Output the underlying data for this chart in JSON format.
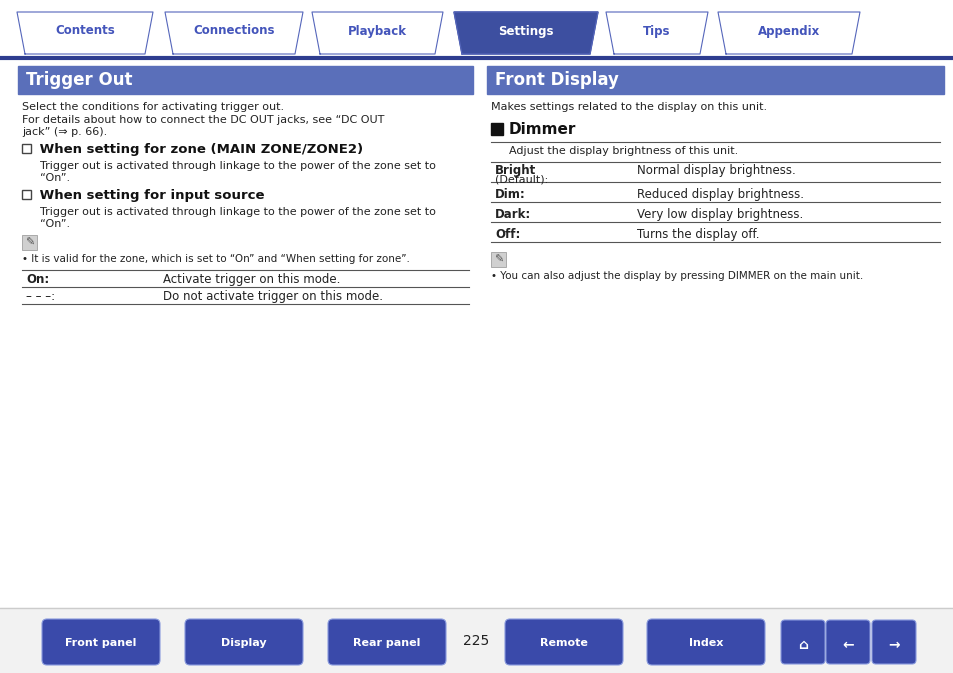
{
  "bg_color": "#ffffff",
  "header_tabs": [
    "Contents",
    "Connections",
    "Playback",
    "Settings",
    "Tips",
    "Appendix"
  ],
  "active_tab": "Settings",
  "tab_color_active": "#3d4fa0",
  "tab_color_inactive": "#ffffff",
  "tab_border_color": "#5566bb",
  "header_line_color": "#2e3d8f",
  "section_bar_color": "#5a6fba",
  "section_bar_text_color": "#ffffff",
  "left_title": "Trigger Out",
  "right_title": "Front Display",
  "left_intro1": "Select the conditions for activating trigger out.",
  "left_intro2_1": "For details about how to connect the DC OUT jacks, see “DC OUT",
  "left_intro2_2": "jack” (⇒ p. 66).",
  "left_h2_1": " When setting for zone (MAIN ZONE/ZONE2)",
  "left_h2_1_body1": "Trigger out is activated through linkage to the power of the zone set to",
  "left_h2_1_body2": "“On”.",
  "left_h2_2": " When setting for input source",
  "left_h2_2_body1": "Trigger out is activated through linkage to the power of the zone set to",
  "left_h2_2_body2": "“On”.",
  "left_note": "• It is valid for the zone, which is set to “On” and “When setting for zone”.",
  "left_table": [
    [
      "On:",
      "Activate trigger on this mode."
    ],
    [
      "– – –:",
      "Do not activate trigger on this mode."
    ]
  ],
  "right_intro": "Makes settings related to the display on this unit.",
  "right_h2": "Dimmer",
  "right_h2_body": "Adjust the display brightness of this unit.",
  "right_table": [
    [
      "Bright",
      "(Default):",
      "Normal display brightness."
    ],
    [
      "Dim:",
      "",
      "Reduced display brightness."
    ],
    [
      "Dark:",
      "",
      "Very low display brightness."
    ],
    [
      "Off:",
      "",
      "Turns the display off."
    ]
  ],
  "right_note": "• You can also adjust the display by pressing DIMMER on the main unit.",
  "footer_buttons": [
    "Front panel",
    "Display",
    "Rear panel",
    "Remote",
    "Index"
  ],
  "page_number": "225",
  "button_color_grad_top": "#6070cc",
  "button_color_grad_bot": "#3a4aaa",
  "footer_bg": "#e8e8e8",
  "text_color": "#222222",
  "link_color": "#2255cc",
  "heading_color": "#111111",
  "tab_text_inactive": "#4455bb"
}
